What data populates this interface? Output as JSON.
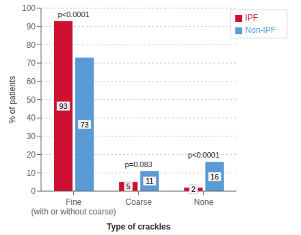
{
  "chart_data": {
    "type": "bar",
    "categories": [
      "Fine\n(with or without coarse)",
      "Coarse",
      "None"
    ],
    "series": [
      {
        "name": "IPF",
        "color": "#cc1133",
        "values": [
          93,
          5,
          2
        ]
      },
      {
        "name": "Non-IPF",
        "color": "#5b9bd5",
        "values": [
          73,
          11,
          16
        ]
      }
    ],
    "xlabel": "Type of crackles",
    "ylabel": "% of patients",
    "ylim": [
      0,
      100
    ],
    "yticks": [
      0,
      10,
      20,
      30,
      40,
      50,
      60,
      70,
      80,
      90,
      100
    ],
    "annotations": [
      "p<0.0001",
      "p=0.083",
      "p<0.0001"
    ],
    "data_labels": true,
    "grid": true,
    "legend": "upper right"
  }
}
